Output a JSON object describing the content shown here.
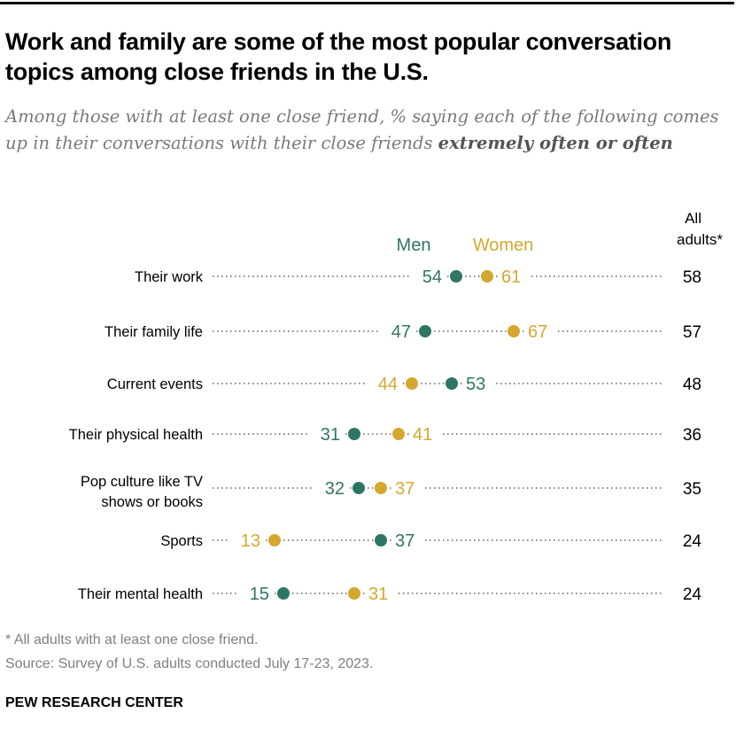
{
  "title": "Work and family are some of the most popular conversation topics among close friends in the U.S.",
  "subtitle_prefix": "Among those with at least one close friend, % saying each of the following comes up in their conversations with their close friends ",
  "subtitle_emphasis": "extremely often or often",
  "chart_data": {
    "type": "dot",
    "categories": [
      "Their work",
      "Their family life",
      "Current events",
      "Their physical health",
      "Pop culture like TV shows or books",
      "Sports",
      "Their mental health"
    ],
    "series": [
      {
        "name": "Men",
        "color": "#2f7566",
        "values": [
          54,
          47,
          53,
          31,
          32,
          37,
          15
        ]
      },
      {
        "name": "Women",
        "color": "#d4a82f",
        "values": [
          61,
          67,
          44,
          41,
          37,
          13,
          31
        ]
      }
    ],
    "all_adults_header": "All adults*",
    "all_adults": [
      58,
      57,
      48,
      36,
      35,
      24,
      24
    ],
    "xlim": [
      0,
      100
    ]
  },
  "footnote": "* All adults with at least one close friend.",
  "source": "Source: Survey of U.S. adults conducted July 17-23, 2023.",
  "brand": "PEW RESEARCH CENTER"
}
